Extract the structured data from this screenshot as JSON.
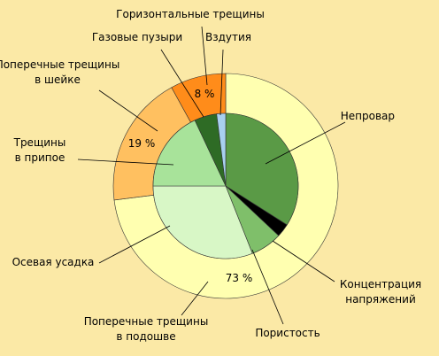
{
  "chart_data": {
    "type": "pie",
    "outer": {
      "categories": [
        "Поперечные трещины\nв подошве",
        "Поперечные трещины\nв шейке",
        "Горизонтальные трещины"
      ],
      "values": [
        73,
        19,
        8
      ],
      "value_labels": [
        "73 %",
        "19 %",
        "8 %"
      ],
      "colors": [
        "#ffffb0",
        "#ffc060",
        "#ff8c1a"
      ]
    },
    "inner": {
      "categories": [
        "Непровар",
        "Концентрация\nнапряжений",
        "Пористость",
        "Осевая усадка",
        "Трещины\nв припое",
        "Газовые пузыри",
        "Вздутия"
      ],
      "values": [
        34,
        3,
        7,
        31,
        18,
        5,
        2
      ],
      "colors": [
        "#5a9a46",
        "#000000",
        "#7fbf6a",
        "#d8f7c6",
        "#a8e39a",
        "#2e6b25",
        "#a8d0f0"
      ]
    }
  }
}
